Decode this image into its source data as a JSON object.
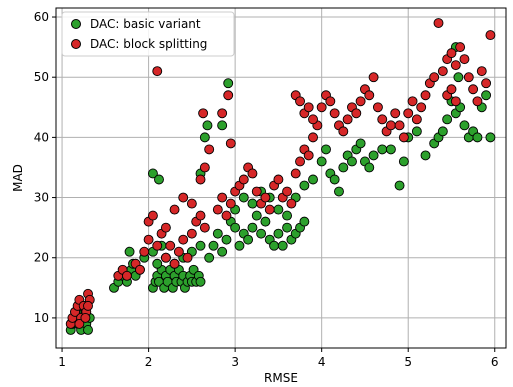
{
  "chart_data": {
    "type": "scatter",
    "xlabel": "RMSE",
    "ylabel": "MAD",
    "xlim": [
      0.93,
      6.13
    ],
    "ylim": [
      5.0,
      61.5
    ],
    "xticks": [
      1,
      2,
      3,
      4,
      5,
      6
    ],
    "yticks": [
      10,
      20,
      30,
      40,
      50,
      60
    ],
    "grid": true,
    "legend_position": "top-left",
    "series": [
      {
        "name": "DAC: basic variant",
        "color": "#2ca02c",
        "points": [
          [
            1.1,
            8
          ],
          [
            1.12,
            9
          ],
          [
            1.15,
            10
          ],
          [
            1.18,
            9
          ],
          [
            1.2,
            11
          ],
          [
            1.22,
            8
          ],
          [
            1.25,
            10
          ],
          [
            1.28,
            9
          ],
          [
            1.3,
            8
          ],
          [
            1.32,
            10
          ],
          [
            1.15,
            11
          ],
          [
            1.22,
            12
          ],
          [
            1.27,
            11
          ],
          [
            1.18,
            10
          ],
          [
            1.6,
            15
          ],
          [
            1.65,
            16
          ],
          [
            1.7,
            17
          ],
          [
            1.75,
            16
          ],
          [
            1.8,
            18
          ],
          [
            1.85,
            17
          ],
          [
            1.9,
            18
          ],
          [
            1.95,
            20
          ],
          [
            1.82,
            19
          ],
          [
            1.78,
            21
          ],
          [
            2.05,
            15
          ],
          [
            2.08,
            16
          ],
          [
            2.1,
            17
          ],
          [
            2.12,
            16
          ],
          [
            2.15,
            18
          ],
          [
            2.18,
            15
          ],
          [
            2.2,
            17
          ],
          [
            2.22,
            16
          ],
          [
            2.25,
            18
          ],
          [
            2.28,
            15
          ],
          [
            2.3,
            17
          ],
          [
            2.32,
            16
          ],
          [
            2.35,
            18
          ],
          [
            2.38,
            16
          ],
          [
            2.4,
            17
          ],
          [
            2.42,
            15
          ],
          [
            2.45,
            16
          ],
          [
            2.48,
            17
          ],
          [
            2.5,
            16
          ],
          [
            2.52,
            18
          ],
          [
            2.55,
            16
          ],
          [
            2.58,
            17
          ],
          [
            2.6,
            16
          ],
          [
            2.1,
            19
          ],
          [
            2.2,
            20
          ],
          [
            2.3,
            19
          ],
          [
            2.4,
            20
          ],
          [
            2.5,
            21
          ],
          [
            2.6,
            22
          ],
          [
            2.05,
            21
          ],
          [
            2.15,
            22
          ],
          [
            2.05,
            34
          ],
          [
            2.12,
            33
          ],
          [
            2.6,
            34
          ],
          [
            2.65,
            40
          ],
          [
            2.68,
            42
          ],
          [
            2.85,
            42
          ],
          [
            2.92,
            49
          ],
          [
            2.7,
            20
          ],
          [
            2.75,
            22
          ],
          [
            2.8,
            24
          ],
          [
            2.85,
            21
          ],
          [
            2.9,
            23
          ],
          [
            2.95,
            26
          ],
          [
            3.0,
            25
          ],
          [
            3.05,
            22
          ],
          [
            3.1,
            24
          ],
          [
            3.15,
            23
          ],
          [
            3.2,
            25
          ],
          [
            3.25,
            27
          ],
          [
            3.3,
            24
          ],
          [
            3.35,
            26
          ],
          [
            3.4,
            23
          ],
          [
            3.45,
            22
          ],
          [
            3.5,
            24
          ],
          [
            3.55,
            22
          ],
          [
            3.6,
            25
          ],
          [
            3.65,
            23
          ],
          [
            3.7,
            24
          ],
          [
            3.75,
            25
          ],
          [
            3.8,
            26
          ],
          [
            3.0,
            28
          ],
          [
            3.1,
            30
          ],
          [
            3.2,
            29
          ],
          [
            3.3,
            31
          ],
          [
            3.4,
            30
          ],
          [
            3.5,
            28
          ],
          [
            3.6,
            27
          ],
          [
            3.7,
            30
          ],
          [
            3.8,
            32
          ],
          [
            3.9,
            33
          ],
          [
            4.0,
            36
          ],
          [
            4.05,
            38
          ],
          [
            4.1,
            34
          ],
          [
            4.15,
            33
          ],
          [
            4.2,
            31
          ],
          [
            4.25,
            35
          ],
          [
            4.3,
            37
          ],
          [
            4.35,
            36
          ],
          [
            4.4,
            38
          ],
          [
            4.45,
            39
          ],
          [
            4.5,
            36
          ],
          [
            4.55,
            35
          ],
          [
            4.6,
            37
          ],
          [
            4.7,
            38
          ],
          [
            4.8,
            38
          ],
          [
            4.9,
            32
          ],
          [
            4.95,
            36
          ],
          [
            5.0,
            40
          ],
          [
            5.1,
            41
          ],
          [
            5.2,
            37
          ],
          [
            5.3,
            39
          ],
          [
            5.35,
            40
          ],
          [
            5.4,
            41
          ],
          [
            5.45,
            43
          ],
          [
            5.5,
            46
          ],
          [
            5.55,
            44
          ],
          [
            5.6,
            45
          ],
          [
            5.65,
            42
          ],
          [
            5.7,
            40
          ],
          [
            5.75,
            41
          ],
          [
            5.8,
            40
          ],
          [
            5.85,
            45
          ],
          [
            5.9,
            47
          ],
          [
            5.95,
            40
          ],
          [
            5.55,
            55
          ],
          [
            5.58,
            50
          ]
        ]
      },
      {
        "name": "DAC: block splitting",
        "color": "#d62728",
        "points": [
          [
            1.1,
            9
          ],
          [
            1.12,
            10
          ],
          [
            1.15,
            11
          ],
          [
            1.18,
            12
          ],
          [
            1.2,
            13
          ],
          [
            1.22,
            10
          ],
          [
            1.25,
            12
          ],
          [
            1.28,
            11
          ],
          [
            1.3,
            14
          ],
          [
            1.32,
            13
          ],
          [
            1.2,
            9
          ],
          [
            1.27,
            10
          ],
          [
            1.3,
            12
          ],
          [
            1.65,
            17
          ],
          [
            1.7,
            18
          ],
          [
            1.75,
            17
          ],
          [
            1.85,
            19
          ],
          [
            1.95,
            21
          ],
          [
            2.0,
            23
          ],
          [
            1.9,
            18
          ],
          [
            2.0,
            26
          ],
          [
            2.05,
            27
          ],
          [
            2.1,
            51
          ],
          [
            2.1,
            22
          ],
          [
            2.15,
            24
          ],
          [
            2.2,
            20
          ],
          [
            2.25,
            22
          ],
          [
            2.3,
            19
          ],
          [
            2.35,
            21
          ],
          [
            2.4,
            23
          ],
          [
            2.45,
            20
          ],
          [
            2.5,
            24
          ],
          [
            2.55,
            26
          ],
          [
            2.6,
            27
          ],
          [
            2.65,
            25
          ],
          [
            2.2,
            25
          ],
          [
            2.3,
            28
          ],
          [
            2.4,
            30
          ],
          [
            2.5,
            29
          ],
          [
            2.6,
            33
          ],
          [
            2.65,
            35
          ],
          [
            2.7,
            38
          ],
          [
            2.63,
            44
          ],
          [
            2.85,
            44
          ],
          [
            2.92,
            47
          ],
          [
            2.95,
            39
          ],
          [
            2.8,
            28
          ],
          [
            2.85,
            30
          ],
          [
            2.9,
            27
          ],
          [
            2.95,
            29
          ],
          [
            3.0,
            31
          ],
          [
            3.05,
            32
          ],
          [
            3.1,
            33
          ],
          [
            3.15,
            35
          ],
          [
            3.2,
            34
          ],
          [
            3.25,
            31
          ],
          [
            3.3,
            29
          ],
          [
            3.35,
            30
          ],
          [
            3.4,
            28
          ],
          [
            3.45,
            32
          ],
          [
            3.5,
            33
          ],
          [
            3.55,
            30
          ],
          [
            3.6,
            31
          ],
          [
            3.65,
            29
          ],
          [
            3.7,
            34
          ],
          [
            3.75,
            36
          ],
          [
            3.8,
            38
          ],
          [
            3.85,
            37
          ],
          [
            3.9,
            40
          ],
          [
            3.95,
            42
          ],
          [
            3.7,
            47
          ],
          [
            3.75,
            46
          ],
          [
            3.8,
            44
          ],
          [
            3.85,
            45
          ],
          [
            3.9,
            43
          ],
          [
            4.0,
            45
          ],
          [
            4.05,
            47
          ],
          [
            4.1,
            46
          ],
          [
            4.15,
            44
          ],
          [
            4.2,
            42
          ],
          [
            4.25,
            41
          ],
          [
            4.3,
            43
          ],
          [
            4.35,
            45
          ],
          [
            4.4,
            44
          ],
          [
            4.45,
            46
          ],
          [
            4.5,
            48
          ],
          [
            4.55,
            47
          ],
          [
            4.6,
            50
          ],
          [
            4.65,
            45
          ],
          [
            4.7,
            43
          ],
          [
            4.75,
            41
          ],
          [
            4.8,
            42
          ],
          [
            4.85,
            44
          ],
          [
            4.9,
            42
          ],
          [
            4.95,
            40
          ],
          [
            5.0,
            44
          ],
          [
            5.05,
            46
          ],
          [
            5.1,
            43
          ],
          [
            5.15,
            45
          ],
          [
            5.2,
            47
          ],
          [
            5.25,
            49
          ],
          [
            5.3,
            50
          ],
          [
            5.35,
            59
          ],
          [
            5.4,
            51
          ],
          [
            5.45,
            53
          ],
          [
            5.5,
            54
          ],
          [
            5.55,
            52
          ],
          [
            5.6,
            55
          ],
          [
            5.65,
            53
          ],
          [
            5.7,
            50
          ],
          [
            5.75,
            48
          ],
          [
            5.8,
            46
          ],
          [
            5.85,
            51
          ],
          [
            5.9,
            49
          ],
          [
            5.95,
            57
          ],
          [
            5.45,
            47
          ],
          [
            5.5,
            48
          ],
          [
            5.55,
            46
          ]
        ]
      }
    ]
  }
}
